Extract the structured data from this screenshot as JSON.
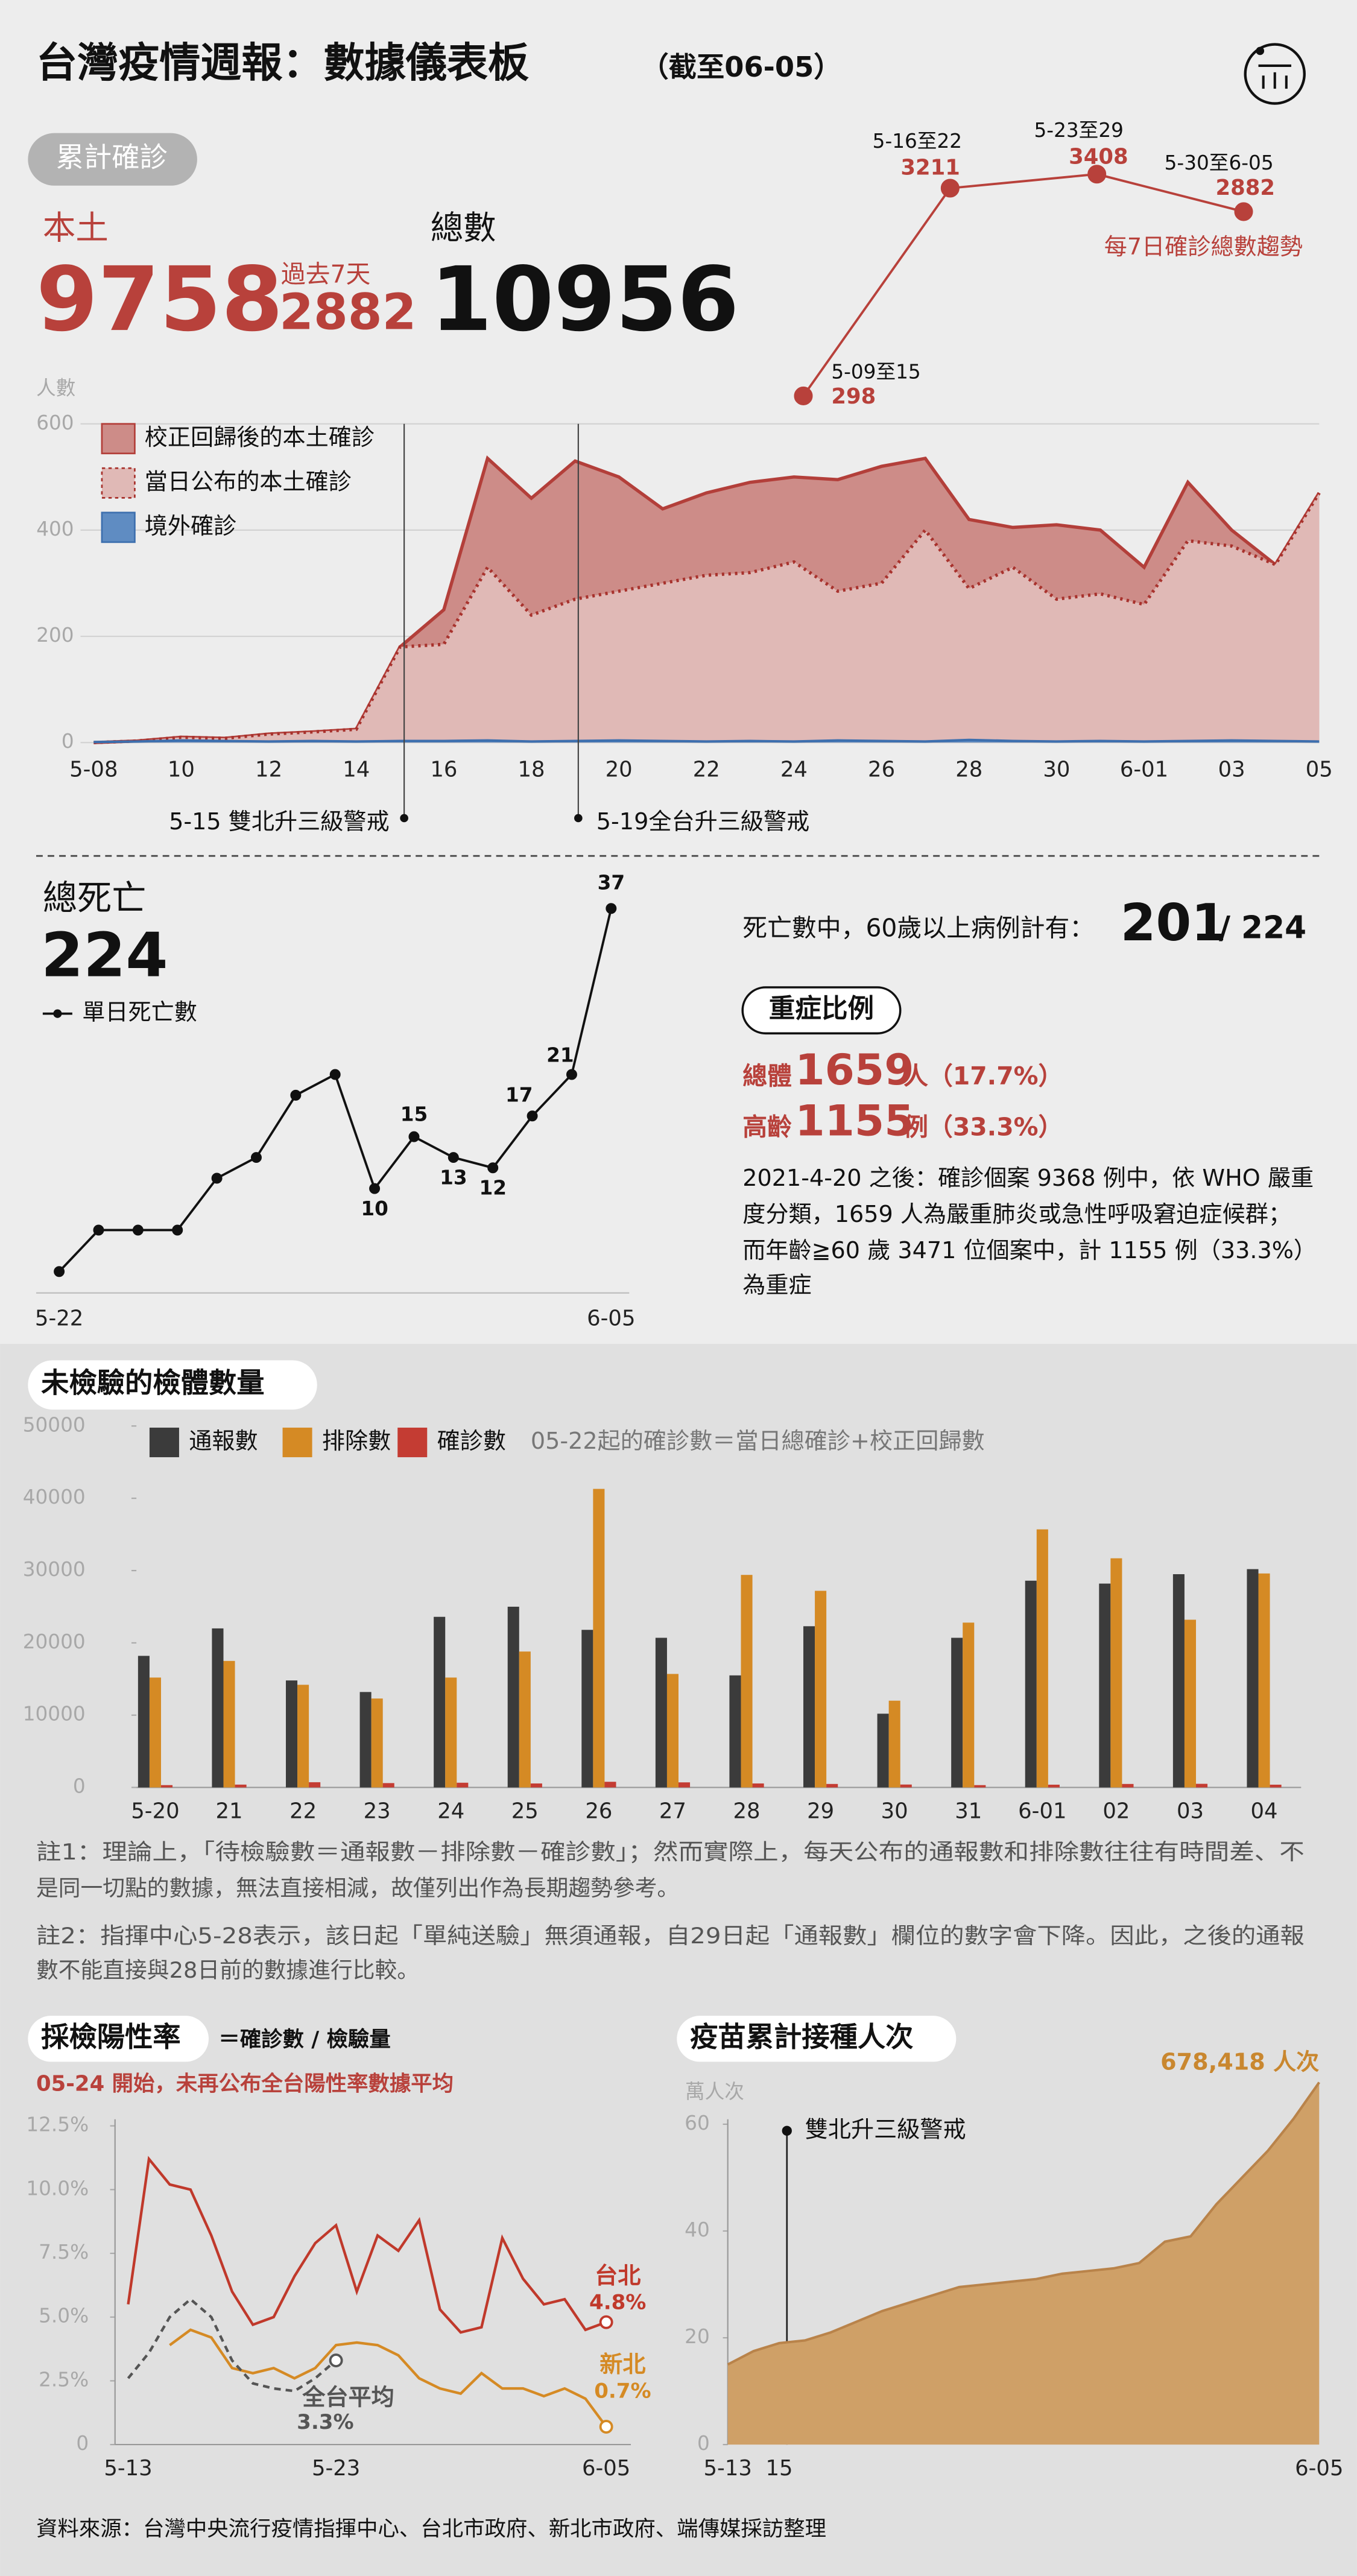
{
  "header": {
    "title": "台灣疫情週報：數據儀表板",
    "as_of": "（截至06-05）"
  },
  "cumulative": {
    "label": "累計確診",
    "local_label": "本土",
    "local": 9758,
    "past7_label": "過去7天",
    "past7": 2882,
    "total_label": "總數",
    "total": 10956
  },
  "deaths": {
    "title": "總死亡",
    "total": 224,
    "seniors_text": "死亡數中，60歲以上病例計有：",
    "seniors": 201,
    "seniors_of": "/ 224"
  },
  "severe": {
    "title": "重症比例",
    "overall_label": "總體",
    "overall": 1659,
    "overall_unit": "人（17.7%）",
    "elderly_label": "高齡",
    "elderly": 1155,
    "elderly_unit": "例（33.3%）",
    "text": [
      "2021-4-20 之後：確診個案 9368 例中，依 WHO 嚴重",
      "度分類，1659  人為嚴重肺炎或急性呼吸窘迫症候群；",
      "而年齡≧60 歲 3471 位個案中，計 1155 例（33.3%）",
      "為重症"
    ]
  },
  "tests_section": {
    "title": "未檢驗的檢體數量",
    "notes": [
      "註1：理論上，「待檢驗數＝通報數－排除數－確診數」；然而實際上，每天公布的通報數和排除數往往有時間差、不",
      "是同一切點的數據，無法直接相減，故僅列出作為長期趨勢參考。",
      "註2：指揮中心5-28表示，該日起「單純送驗」無須通報，自29日起「通報數」欄位的數字會下降。因此，之後的通報",
      "數不能直接與28日前的數據進行比較。"
    ]
  },
  "positivity_section": {
    "title": "採檢陽性率",
    "formula": "＝確診數 / 檢驗量",
    "note": "05-24 開始，未再公布全台陽性率數據平均"
  },
  "vaccine_section": {
    "title": "疫苗累計接種人次"
  },
  "source": "資料來源：台灣中央流行疫情指揮中心、台北市政府、新北市政府、端傳媒採訪整理",
  "chart_data": [
    {
      "type": "line",
      "categories": [
        "5-09至15",
        "5-16至22",
        "5-23至29",
        "5-30至6-05"
      ],
      "values": [
        298,
        3211,
        3408,
        2882
      ],
      "color": "#b8413b",
      "annotation": "每7日確診總數趨勢"
    },
    {
      "type": "area",
      "y_label": "人數",
      "categories": [
        "5-08",
        null,
        "10",
        null,
        "12",
        null,
        "14",
        null,
        "16",
        null,
        "18",
        null,
        "20",
        null,
        "22",
        null,
        "24",
        null,
        "26",
        null,
        "28",
        null,
        "30",
        null,
        "6-01",
        null,
        "03",
        null,
        "05"
      ],
      "series": [
        {
          "name": "校正回歸後的本土確診",
          "color": "#cd8c88",
          "values": [
            0,
            3,
            10,
            8,
            16,
            20,
            25,
            180,
            250,
            535,
            460,
            530,
            500,
            440,
            470,
            490,
            500,
            495,
            520,
            535,
            420,
            405,
            410,
            400,
            330,
            490,
            400,
            335,
            470
          ]
        },
        {
          "name": "當日公布的本土確診",
          "color": "#e0b9b6",
          "values": [
            0,
            3,
            10,
            8,
            16,
            20,
            25,
            180,
            185,
            330,
            240,
            270,
            285,
            300,
            315,
            320,
            340,
            285,
            300,
            400,
            290,
            330,
            270,
            280,
            260,
            380,
            370,
            335,
            470
          ]
        },
        {
          "name": "境外確診",
          "color": "#5f8cc2",
          "values": [
            1,
            2,
            4,
            3,
            2,
            3,
            2,
            3,
            3,
            4,
            2,
            3,
            4,
            3,
            2,
            3,
            2,
            4,
            3,
            2,
            5,
            3,
            2,
            3,
            2,
            3,
            4,
            3,
            2
          ]
        }
      ],
      "ylim": [
        0,
        600
      ],
      "yticks": [
        0,
        200,
        400,
        600
      ],
      "grid": true,
      "legend": "upper left",
      "annotations": [
        "5-15 雙北升三級警戒",
        "5-19全台升三級警戒"
      ]
    },
    {
      "type": "line",
      "categories": [
        "5-22",
        null,
        null,
        null,
        null,
        null,
        null,
        null,
        null,
        null,
        null,
        null,
        null,
        null,
        "6-05"
      ],
      "series": [
        {
          "name": "單日死亡數",
          "color": "#111111",
          "values": [
            2,
            6,
            6,
            6,
            11,
            13,
            19,
            21,
            10,
            15,
            13,
            12,
            17,
            21,
            37
          ],
          "value_labels": [
            null,
            null,
            null,
            null,
            null,
            null,
            null,
            null,
            "10",
            "15",
            "13",
            "12",
            "17",
            "21",
            "37"
          ]
        }
      ]
    },
    {
      "type": "bar",
      "categories": [
        "5-20",
        "21",
        "22",
        "23",
        "24",
        "25",
        "26",
        "27",
        "28",
        "29",
        "30",
        "31",
        "6-01",
        "02",
        "03",
        "04"
      ],
      "series": [
        {
          "name": "通報數",
          "color": "#3b3b3b",
          "values": [
            18200,
            22000,
            14800,
            13200,
            23600,
            25000,
            21800,
            20700,
            15500,
            22300,
            10200,
            20700,
            28600,
            28200,
            29500,
            30200
          ]
        },
        {
          "name": "排除數",
          "color": "#d58a24",
          "values": [
            15200,
            17500,
            14200,
            12300,
            15200,
            18800,
            41300,
            15700,
            29400,
            27200,
            12000,
            22800,
            35700,
            31700,
            23200,
            29600
          ]
        },
        {
          "name": "確診數",
          "color": "#c43c33",
          "values": [
            320,
            390,
            720,
            600,
            650,
            550,
            780,
            700,
            550,
            480,
            400,
            320,
            380,
            480,
            500,
            380
          ]
        }
      ],
      "ylim": [
        0,
        50000
      ],
      "yticks": [
        0,
        10000,
        20000,
        30000,
        40000,
        50000
      ],
      "grid": false,
      "legend": "upper left",
      "note": "05-22起的確診數＝當日總確診+校正回歸數"
    },
    {
      "type": "line",
      "categories": [
        "5-13",
        null,
        null,
        null,
        null,
        null,
        null,
        null,
        null,
        null,
        "5-23",
        null,
        null,
        null,
        null,
        null,
        null,
        null,
        null,
        null,
        null,
        null,
        null,
        "6-05"
      ],
      "series": [
        {
          "name": "台北",
          "color": "#c0392b",
          "values": [
            5.5,
            11.2,
            10.2,
            10.0,
            8.2,
            6.0,
            4.7,
            5.0,
            6.6,
            7.9,
            8.6,
            6.0,
            8.2,
            7.6,
            8.8,
            5.3,
            4.4,
            4.6,
            8.1,
            6.5,
            5.5,
            5.7,
            4.5,
            4.8
          ],
          "value_labels": [
            null,
            null,
            null,
            null,
            null,
            null,
            null,
            null,
            null,
            null,
            null,
            null,
            null,
            null,
            null,
            null,
            null,
            null,
            null,
            null,
            null,
            null,
            null,
            "4.8%"
          ]
        },
        {
          "name": "新北",
          "color": "#d58a24",
          "values": [
            null,
            null,
            3.9,
            4.5,
            4.2,
            3.0,
            2.8,
            3.0,
            2.6,
            3.0,
            3.9,
            4.0,
            3.9,
            3.5,
            2.6,
            2.2,
            2.0,
            2.8,
            2.2,
            2.2,
            1.9,
            2.2,
            1.8,
            0.7
          ],
          "value_labels": [
            null,
            null,
            null,
            null,
            null,
            null,
            null,
            null,
            null,
            null,
            null,
            null,
            null,
            null,
            null,
            null,
            null,
            null,
            null,
            null,
            null,
            null,
            null,
            "0.7%"
          ]
        },
        {
          "name": "全台平均",
          "color": "#555555",
          "values": [
            2.6,
            3.6,
            5.0,
            5.7,
            5.0,
            3.3,
            2.4,
            2.2,
            2.1,
            2.6,
            3.3,
            null,
            null,
            null,
            null,
            null,
            null,
            null,
            null,
            null,
            null,
            null,
            null,
            null
          ],
          "value_labels": [
            null,
            null,
            null,
            null,
            null,
            null,
            null,
            null,
            null,
            null,
            "3.3%",
            null,
            null,
            null,
            null,
            null,
            null,
            null,
            null,
            null,
            null,
            null,
            null,
            null
          ]
        }
      ],
      "ylim": [
        0,
        12.5
      ],
      "yticks": [
        0,
        {
          "value": 2.5,
          "label": "2.5%"
        },
        {
          "value": 5,
          "label": "5.0%"
        },
        {
          "value": 7.5,
          "label": "7.5%"
        },
        {
          "value": 10,
          "label": "10.0%"
        },
        {
          "value": 12.5,
          "label": "12.5%"
        }
      ],
      "grid": false
    },
    {
      "type": "area",
      "y_label": "萬人次",
      "categories": [
        "5-13",
        null,
        "15",
        null,
        null,
        null,
        null,
        null,
        null,
        null,
        null,
        null,
        null,
        null,
        null,
        null,
        null,
        null,
        null,
        null,
        null,
        null,
        null,
        "6-05"
      ],
      "values": [
        15.0,
        17.5,
        19.0,
        19.5,
        21,
        23,
        25,
        26.5,
        28,
        29.5,
        30,
        30.5,
        31,
        32,
        32.5,
        33,
        34,
        38,
        39,
        45,
        50,
        55,
        61,
        67.8418
      ],
      "value_labels": [
        null,
        null,
        null,
        null,
        null,
        null,
        null,
        null,
        null,
        null,
        null,
        null,
        null,
        null,
        null,
        null,
        null,
        null,
        null,
        null,
        null,
        null,
        null,
        "678,418 人次"
      ],
      "color": "#cfa067",
      "ylim": [
        0,
        68
      ],
      "yticks": [
        0,
        20,
        40,
        60
      ],
      "grid": false,
      "annotations": [
        "雙北升三級警戒"
      ]
    }
  ]
}
